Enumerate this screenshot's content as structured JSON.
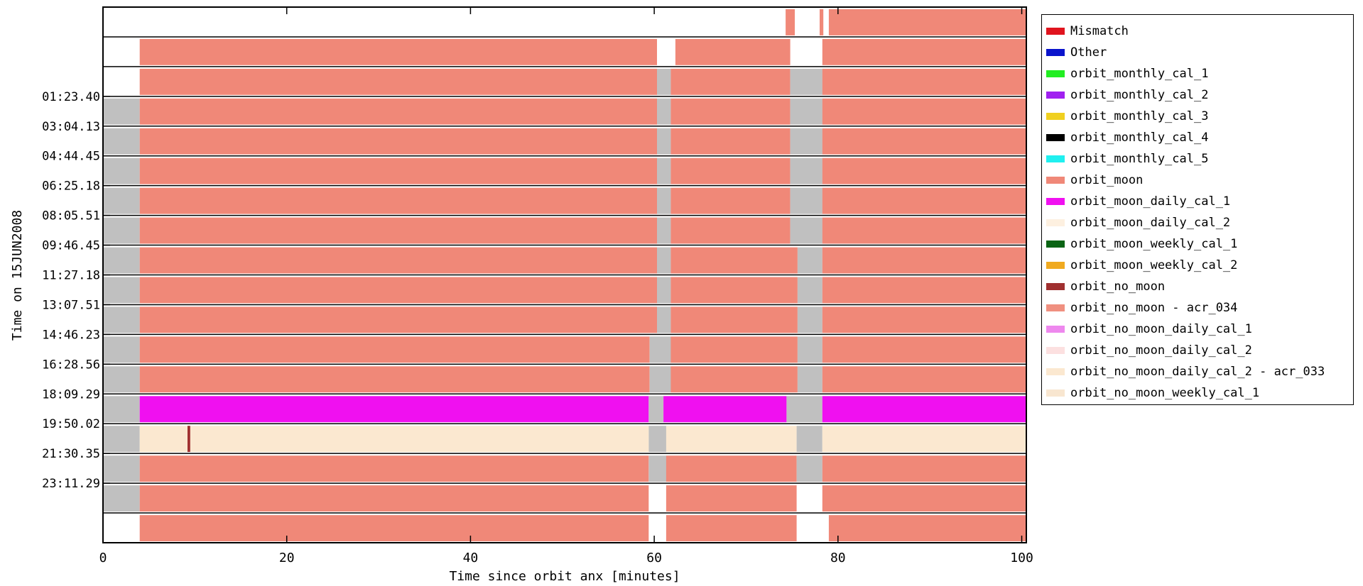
{
  "chart_data": {
    "type": "bar",
    "orientation": "horizontal-timeline",
    "xlabel": "Time since orbit anx [minutes]",
    "ylabel": "Time on 15JUN2008",
    "xlim": [
      0,
      100.5
    ],
    "xticks": [
      0,
      20,
      40,
      60,
      80,
      100
    ],
    "yticks": [
      "01:23.40",
      "03:04.13",
      "04:44.45",
      "06:25.18",
      "08:05.51",
      "09:46.45",
      "11:27.18",
      "13:07.51",
      "14:46.23",
      "16:28.56",
      "18:09.29",
      "19:50.02",
      "21:30.35",
      "23:11.29"
    ],
    "grid": false,
    "legend_position": "right",
    "legend": [
      {
        "name": "Mismatch",
        "color": "#e0141e"
      },
      {
        "name": "Other",
        "color": "#0a14cc"
      },
      {
        "name": "orbit_monthly_cal_1",
        "color": "#22ee22"
      },
      {
        "name": "orbit_monthly_cal_2",
        "color": "#a020f0"
      },
      {
        "name": "orbit_monthly_cal_3",
        "color": "#f0d020"
      },
      {
        "name": "orbit_monthly_cal_4",
        "color": "#000000"
      },
      {
        "name": "orbit_monthly_cal_5",
        "color": "#20f0f0"
      },
      {
        "name": "orbit_moon",
        "color": "#f08878"
      },
      {
        "name": "orbit_moon_daily_cal_1",
        "color": "#f010f0"
      },
      {
        "name": "orbit_moon_daily_cal_2",
        "color": "#fdf0e0"
      },
      {
        "name": "orbit_moon_weekly_cal_1",
        "color": "#0a6414"
      },
      {
        "name": "orbit_moon_weekly_cal_2",
        "color": "#f0aa20"
      },
      {
        "name": "orbit_no_moon",
        "color": "#a03030"
      },
      {
        "name": "orbit_no_moon - acr_034",
        "color": "#f09080"
      },
      {
        "name": "orbit_no_moon_daily_cal_1",
        "color": "#ee88ee"
      },
      {
        "name": "orbit_no_moon_daily_cal_2",
        "color": "#fce0e0"
      },
      {
        "name": "orbit_no_moon_daily_cal_2 - acr_033",
        "color": "#fbe8d0"
      },
      {
        "name": "orbit_no_moon_weekly_cal_1",
        "color": "#f8e6d0"
      }
    ],
    "gap_color": "#c0c0c0",
    "rows": [
      {
        "segments": [
          {
            "start": 74.3,
            "end": 75.3,
            "color": "#f08878"
          },
          {
            "start": 78.0,
            "end": 78.4,
            "color": "#f08878"
          },
          {
            "start": 79.0,
            "end": 100.5,
            "color": "#f08878"
          }
        ]
      },
      {
        "segments": [
          {
            "start": 4.0,
            "end": 60.3,
            "color": "#f08878"
          },
          {
            "start": 62.3,
            "end": 74.8,
            "color": "#f08878"
          },
          {
            "start": 78.3,
            "end": 100.5,
            "color": "#f08878"
          }
        ]
      },
      {
        "segments": [
          {
            "start": 4.0,
            "end": 60.3,
            "color": "#f08878"
          },
          {
            "start": 60.3,
            "end": 61.8,
            "color": "#c0c0c0"
          },
          {
            "start": 61.8,
            "end": 74.8,
            "color": "#f08878"
          },
          {
            "start": 74.8,
            "end": 78.3,
            "color": "#c0c0c0"
          },
          {
            "start": 78.3,
            "end": 100.5,
            "color": "#f08878"
          }
        ]
      },
      {
        "segments": [
          {
            "start": 0.0,
            "end": 4.0,
            "color": "#c0c0c0"
          },
          {
            "start": 4.0,
            "end": 60.3,
            "color": "#f08878"
          },
          {
            "start": 60.3,
            "end": 61.8,
            "color": "#c0c0c0"
          },
          {
            "start": 61.8,
            "end": 74.8,
            "color": "#f08878"
          },
          {
            "start": 74.8,
            "end": 78.3,
            "color": "#c0c0c0"
          },
          {
            "start": 78.3,
            "end": 100.5,
            "color": "#f08878"
          }
        ]
      },
      {
        "segments": [
          {
            "start": 0.0,
            "end": 4.0,
            "color": "#c0c0c0"
          },
          {
            "start": 4.0,
            "end": 60.3,
            "color": "#f08878"
          },
          {
            "start": 60.3,
            "end": 61.8,
            "color": "#c0c0c0"
          },
          {
            "start": 61.8,
            "end": 74.8,
            "color": "#f08878"
          },
          {
            "start": 74.8,
            "end": 78.3,
            "color": "#c0c0c0"
          },
          {
            "start": 78.3,
            "end": 100.5,
            "color": "#f08878"
          }
        ]
      },
      {
        "segments": [
          {
            "start": 0.0,
            "end": 4.0,
            "color": "#c0c0c0"
          },
          {
            "start": 4.0,
            "end": 60.3,
            "color": "#f08878"
          },
          {
            "start": 60.3,
            "end": 61.8,
            "color": "#c0c0c0"
          },
          {
            "start": 61.8,
            "end": 74.8,
            "color": "#f08878"
          },
          {
            "start": 74.8,
            "end": 78.3,
            "color": "#c0c0c0"
          },
          {
            "start": 78.3,
            "end": 100.5,
            "color": "#f08878"
          }
        ]
      },
      {
        "segments": [
          {
            "start": 0.0,
            "end": 4.0,
            "color": "#c0c0c0"
          },
          {
            "start": 4.0,
            "end": 60.3,
            "color": "#f08878"
          },
          {
            "start": 60.3,
            "end": 61.8,
            "color": "#c0c0c0"
          },
          {
            "start": 61.8,
            "end": 74.8,
            "color": "#f08878"
          },
          {
            "start": 74.8,
            "end": 78.3,
            "color": "#c0c0c0"
          },
          {
            "start": 78.3,
            "end": 100.5,
            "color": "#f08878"
          }
        ]
      },
      {
        "segments": [
          {
            "start": 0.0,
            "end": 4.0,
            "color": "#c0c0c0"
          },
          {
            "start": 4.0,
            "end": 60.3,
            "color": "#f08878"
          },
          {
            "start": 60.3,
            "end": 61.8,
            "color": "#c0c0c0"
          },
          {
            "start": 61.8,
            "end": 74.8,
            "color": "#f08878"
          },
          {
            "start": 74.8,
            "end": 78.3,
            "color": "#c0c0c0"
          },
          {
            "start": 78.3,
            "end": 100.5,
            "color": "#f08878"
          }
        ]
      },
      {
        "segments": [
          {
            "start": 0.0,
            "end": 4.0,
            "color": "#c0c0c0"
          },
          {
            "start": 4.0,
            "end": 60.3,
            "color": "#f08878"
          },
          {
            "start": 60.3,
            "end": 61.8,
            "color": "#c0c0c0"
          },
          {
            "start": 61.8,
            "end": 75.6,
            "color": "#f08878"
          },
          {
            "start": 75.6,
            "end": 78.3,
            "color": "#c0c0c0"
          },
          {
            "start": 78.3,
            "end": 100.5,
            "color": "#f08878"
          }
        ]
      },
      {
        "segments": [
          {
            "start": 0.0,
            "end": 4.0,
            "color": "#c0c0c0"
          },
          {
            "start": 4.0,
            "end": 60.3,
            "color": "#f08878"
          },
          {
            "start": 60.3,
            "end": 61.8,
            "color": "#c0c0c0"
          },
          {
            "start": 61.8,
            "end": 75.6,
            "color": "#f08878"
          },
          {
            "start": 75.6,
            "end": 78.3,
            "color": "#c0c0c0"
          },
          {
            "start": 78.3,
            "end": 100.5,
            "color": "#f08878"
          }
        ]
      },
      {
        "segments": [
          {
            "start": 0.0,
            "end": 4.0,
            "color": "#c0c0c0"
          },
          {
            "start": 4.0,
            "end": 60.3,
            "color": "#f08878"
          },
          {
            "start": 60.3,
            "end": 61.8,
            "color": "#c0c0c0"
          },
          {
            "start": 61.8,
            "end": 75.6,
            "color": "#f08878"
          },
          {
            "start": 75.6,
            "end": 78.3,
            "color": "#c0c0c0"
          },
          {
            "start": 78.3,
            "end": 100.5,
            "color": "#f08878"
          }
        ]
      },
      {
        "segments": [
          {
            "start": 0.0,
            "end": 4.0,
            "color": "#c0c0c0"
          },
          {
            "start": 4.0,
            "end": 59.5,
            "color": "#f08878"
          },
          {
            "start": 59.5,
            "end": 61.8,
            "color": "#c0c0c0"
          },
          {
            "start": 61.8,
            "end": 75.6,
            "color": "#f08878"
          },
          {
            "start": 75.6,
            "end": 78.3,
            "color": "#c0c0c0"
          },
          {
            "start": 78.3,
            "end": 100.5,
            "color": "#f08878"
          }
        ]
      },
      {
        "segments": [
          {
            "start": 0.0,
            "end": 4.0,
            "color": "#c0c0c0"
          },
          {
            "start": 4.0,
            "end": 59.5,
            "color": "#f08878"
          },
          {
            "start": 59.5,
            "end": 61.8,
            "color": "#c0c0c0"
          },
          {
            "start": 61.8,
            "end": 75.6,
            "color": "#f08878"
          },
          {
            "start": 75.6,
            "end": 78.3,
            "color": "#c0c0c0"
          },
          {
            "start": 78.3,
            "end": 100.5,
            "color": "#f08878"
          }
        ]
      },
      {
        "segments": [
          {
            "start": 0.0,
            "end": 4.0,
            "color": "#c0c0c0"
          },
          {
            "start": 4.0,
            "end": 59.4,
            "color": "#f010f0"
          },
          {
            "start": 59.4,
            "end": 61.0,
            "color": "#c0c0c0"
          },
          {
            "start": 61.0,
            "end": 74.4,
            "color": "#f010f0"
          },
          {
            "start": 74.4,
            "end": 78.3,
            "color": "#c0c0c0"
          },
          {
            "start": 78.3,
            "end": 100.5,
            "color": "#f010f0"
          }
        ]
      },
      {
        "segments": [
          {
            "start": 0.0,
            "end": 4.0,
            "color": "#c0c0c0"
          },
          {
            "start": 4.0,
            "end": 9.2,
            "color": "#fbe8d0"
          },
          {
            "start": 9.2,
            "end": 9.5,
            "color": "#a03030"
          },
          {
            "start": 9.5,
            "end": 59.4,
            "color": "#fbe8d0"
          },
          {
            "start": 59.4,
            "end": 61.3,
            "color": "#c0c0c0"
          },
          {
            "start": 61.3,
            "end": 75.5,
            "color": "#fbe8d0"
          },
          {
            "start": 75.5,
            "end": 78.3,
            "color": "#c0c0c0"
          },
          {
            "start": 78.3,
            "end": 100.5,
            "color": "#fbe8d0"
          }
        ]
      },
      {
        "segments": [
          {
            "start": 0.0,
            "end": 4.0,
            "color": "#c0c0c0"
          },
          {
            "start": 4.0,
            "end": 59.4,
            "color": "#f08878"
          },
          {
            "start": 59.4,
            "end": 61.3,
            "color": "#c0c0c0"
          },
          {
            "start": 61.3,
            "end": 75.5,
            "color": "#f08878"
          },
          {
            "start": 75.5,
            "end": 78.3,
            "color": "#c0c0c0"
          },
          {
            "start": 78.3,
            "end": 100.5,
            "color": "#f08878"
          }
        ]
      },
      {
        "segments": [
          {
            "start": 0.0,
            "end": 4.0,
            "color": "#c0c0c0"
          },
          {
            "start": 4.0,
            "end": 59.4,
            "color": "#f08878"
          },
          {
            "start": 61.3,
            "end": 75.5,
            "color": "#f08878"
          },
          {
            "start": 78.3,
            "end": 100.5,
            "color": "#f08878"
          }
        ]
      },
      {
        "segments": [
          {
            "start": 4.0,
            "end": 59.4,
            "color": "#f08878"
          },
          {
            "start": 61.3,
            "end": 75.5,
            "color": "#f08878"
          },
          {
            "start": 79.0,
            "end": 92.5,
            "color": "#f08878"
          },
          {
            "start": 92.5,
            "end": 100.5,
            "color": "#f08878"
          }
        ]
      }
    ]
  }
}
